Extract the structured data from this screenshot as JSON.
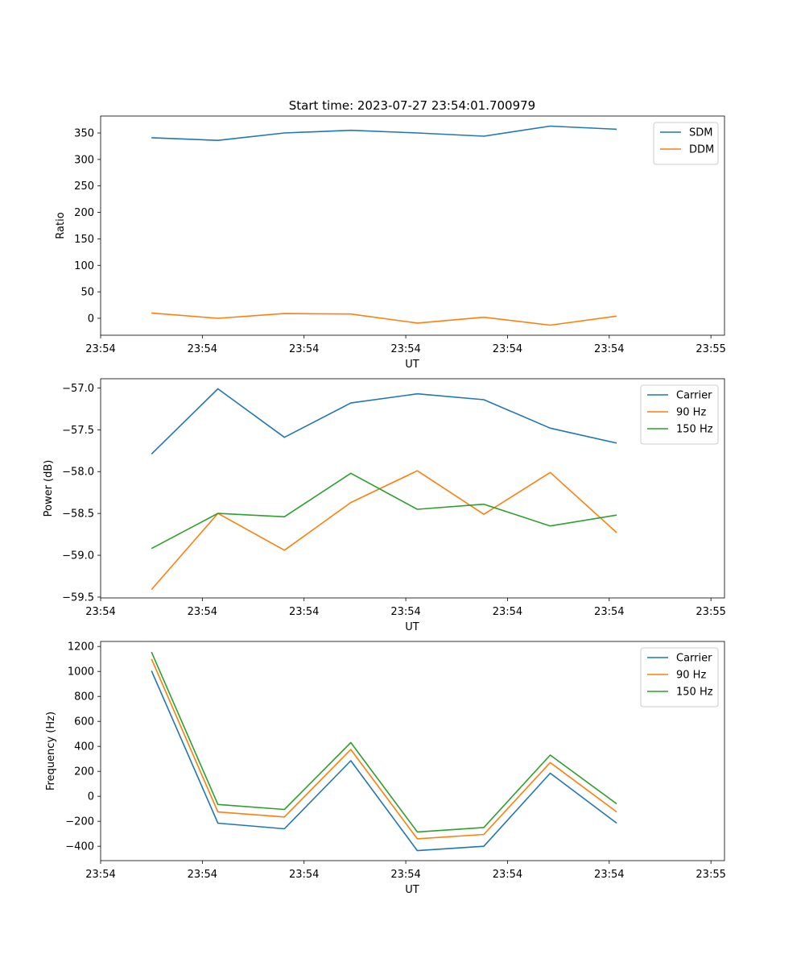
{
  "figure": {
    "title": "Start time: 2023-07-27 23:54:01.700979"
  },
  "chart_data": [
    {
      "type": "line",
      "title": "Start time: 2023-07-27 23:54:01.700979",
      "xlabel": "UT",
      "ylabel": "Ratio",
      "xlim": [
        0,
        9.2
      ],
      "ylim": [
        -32,
        382
      ],
      "x_ticks": [
        0,
        1.5,
        3,
        4.5,
        6,
        7.5,
        9
      ],
      "x_tick_labels": [
        "23:54",
        "23:54",
        "23:54",
        "23:54",
        "23:54",
        "23:54",
        "23:55"
      ],
      "y_ticks": [
        0,
        50,
        100,
        150,
        200,
        250,
        300,
        350
      ],
      "y_tick_labels": [
        "0",
        "50",
        "100",
        "150",
        "200",
        "250",
        "300",
        "350"
      ],
      "legend_position": "top-right",
      "x": [
        0.75,
        1.73,
        2.71,
        3.69,
        4.67,
        5.65,
        6.63,
        7.61
      ],
      "series": [
        {
          "name": "SDM",
          "color": "#1f77b4",
          "values": [
            341,
            336,
            350,
            355,
            350,
            344,
            363,
            357
          ]
        },
        {
          "name": "DDM",
          "color": "#ff7f0e",
          "values": [
            10,
            0,
            9,
            8,
            -9,
            2,
            -13,
            4
          ]
        }
      ]
    },
    {
      "type": "line",
      "xlabel": "UT",
      "ylabel": "Power (dB)",
      "xlim": [
        0,
        9.2
      ],
      "ylim": [
        -59.51,
        -56.89
      ],
      "x_ticks": [
        0,
        1.5,
        3,
        4.5,
        6,
        7.5,
        9
      ],
      "x_tick_labels": [
        "23:54",
        "23:54",
        "23:54",
        "23:54",
        "23:54",
        "23:54",
        "23:55"
      ],
      "y_ticks": [
        -59.5,
        -59.0,
        -58.5,
        -58.0,
        -57.5,
        -57.0
      ],
      "y_tick_labels": [
        "−59.5",
        "−59.0",
        "−58.5",
        "−58.0",
        "−57.5",
        "−57.0"
      ],
      "legend_position": "top-right",
      "x": [
        0.75,
        1.73,
        2.71,
        3.69,
        4.67,
        5.65,
        6.63,
        7.61
      ],
      "series": [
        {
          "name": "Carrier",
          "color": "#1f77b4",
          "values": [
            -57.79,
            -57.01,
            -57.59,
            -57.18,
            -57.07,
            -57.14,
            -57.48,
            -57.66
          ]
        },
        {
          "name": "90 Hz",
          "color": "#ff7f0e",
          "values": [
            -59.41,
            -58.5,
            -58.94,
            -58.37,
            -57.99,
            -58.51,
            -58.01,
            -58.73
          ]
        },
        {
          "name": "150 Hz",
          "color": "#2ca02c",
          "values": [
            -58.92,
            -58.5,
            -58.54,
            -58.02,
            -58.45,
            -58.39,
            -58.65,
            -58.52
          ]
        }
      ]
    },
    {
      "type": "line",
      "xlabel": "UT",
      "ylabel": "Frequency (Hz)",
      "xlim": [
        0,
        9.2
      ],
      "ylim": [
        -515,
        1240
      ],
      "x_ticks": [
        0,
        1.5,
        3,
        4.5,
        6,
        7.5,
        9
      ],
      "x_tick_labels": [
        "23:54",
        "23:54",
        "23:54",
        "23:54",
        "23:54",
        "23:54",
        "23:55"
      ],
      "y_ticks": [
        -400,
        -200,
        0,
        200,
        400,
        600,
        800,
        1000,
        1200
      ],
      "y_tick_labels": [
        "−400",
        "−200",
        "0",
        "200",
        "400",
        "600",
        "800",
        "1000",
        "1200"
      ],
      "legend_position": "top-right",
      "x": [
        0.75,
        1.73,
        2.71,
        3.69,
        4.67,
        5.65,
        6.63,
        7.61
      ],
      "series": [
        {
          "name": "Carrier",
          "color": "#1f77b4",
          "values": [
            1005,
            -215,
            -260,
            285,
            -435,
            -400,
            185,
            -215
          ]
        },
        {
          "name": "90 Hz",
          "color": "#ff7f0e",
          "values": [
            1100,
            -125,
            -165,
            375,
            -340,
            -305,
            270,
            -125
          ]
        },
        {
          "name": "150 Hz",
          "color": "#2ca02c",
          "values": [
            1155,
            -65,
            -105,
            430,
            -285,
            -250,
            330,
            -60
          ]
        }
      ]
    }
  ]
}
